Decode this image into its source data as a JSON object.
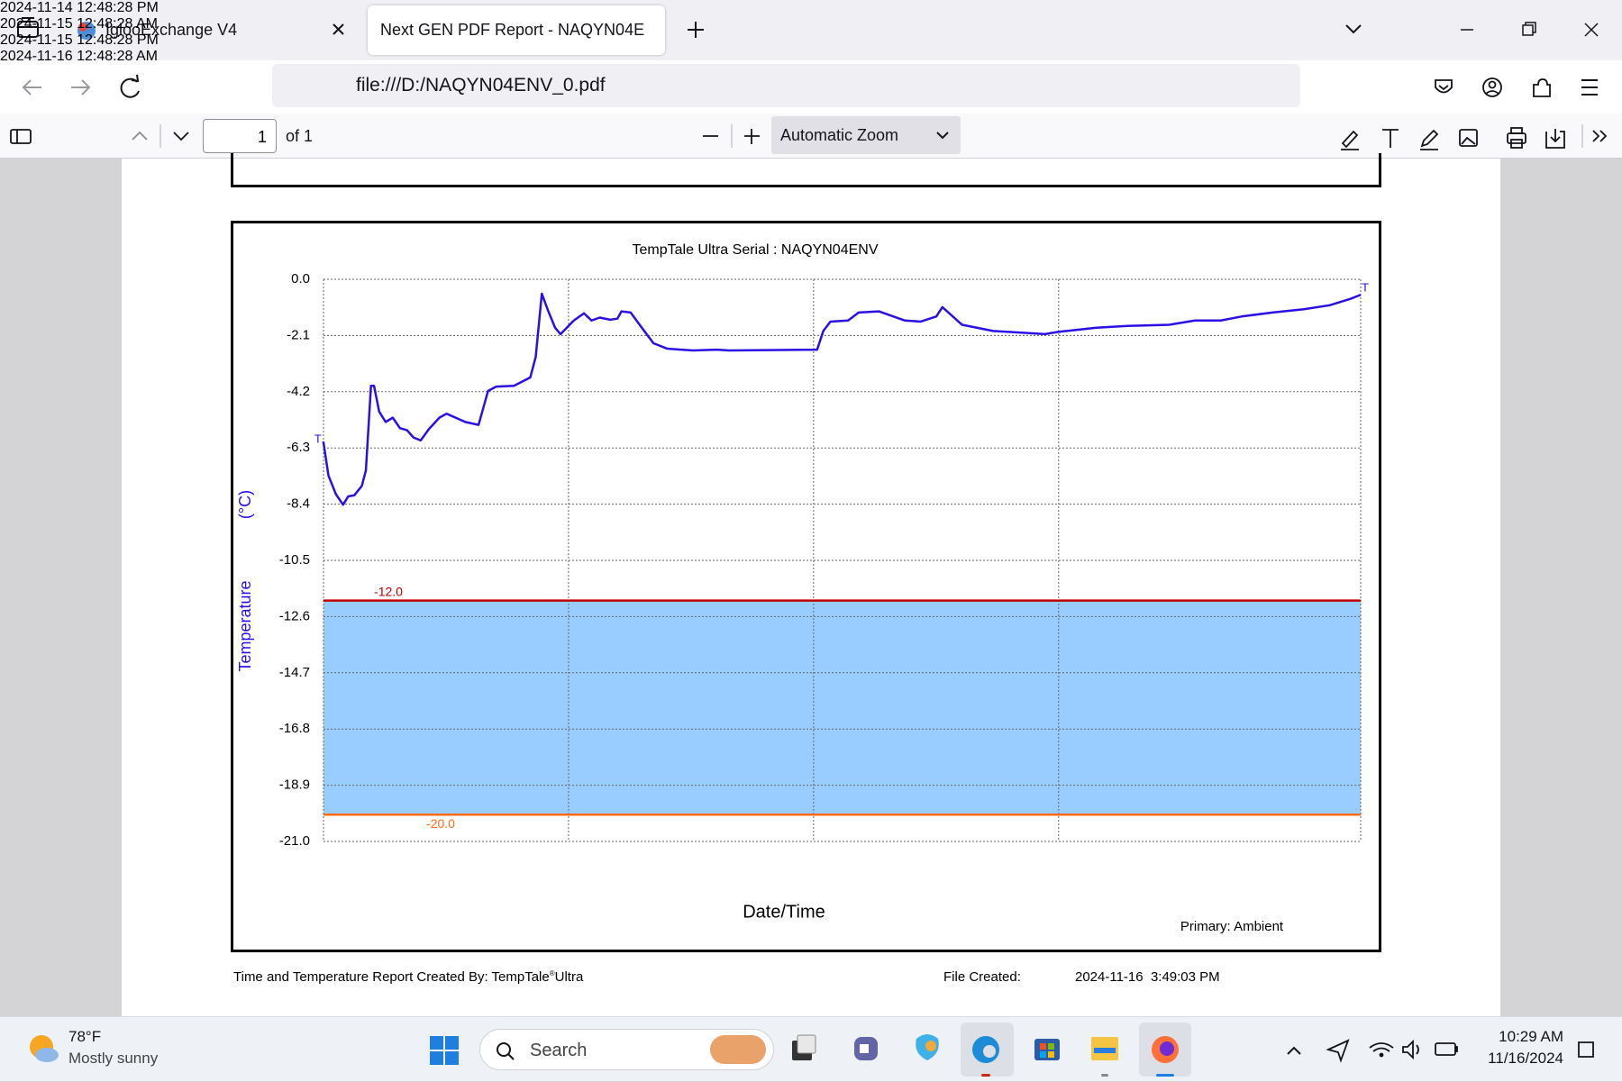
{
  "browser": {
    "tabs": [
      "IglooExchange V4",
      "Next GEN PDF Report - NAQYN04E"
    ],
    "url": "file:///D:/NAQYN04ENV_0.pdf",
    "pdf_toolbar": {
      "page": "1",
      "page_count": "of 1",
      "zoom": "Automatic Zoom"
    }
  },
  "chart_data": {
    "type": "line",
    "title": "TempTale Ultra  Serial : NAQYN04ENV",
    "x_label": "Date/Time",
    "y_label": "Temperature",
    "y_unit": "(°C)",
    "note": "Primary: Ambient",
    "x": [
      "2024-11-14T12:48",
      "2024-11-14T13:03",
      "2024-11-14T13:25",
      "2024-11-14T13:46",
      "2024-11-14T14:01",
      "2024-11-14T14:19",
      "2024-11-14T14:41",
      "2024-11-14T14:53",
      "2024-11-14T15:08",
      "2024-11-14T15:17",
      "2024-11-14T15:32",
      "2024-11-14T15:51",
      "2024-11-14T16:12",
      "2024-11-14T16:33",
      "2024-11-14T16:54",
      "2024-11-14T17:13",
      "2024-11-14T17:34",
      "2024-11-14T17:58",
      "2024-11-14T18:29",
      "2024-11-14T18:50",
      "2024-11-14T19:45",
      "2024-11-14T20:24",
      "2024-11-14T20:52",
      "2024-11-14T21:16",
      "2024-11-14T22:08",
      "2024-11-14T22:56",
      "2024-11-14T23:12",
      "2024-11-14T23:30",
      "2024-11-14T23:48",
      "2024-11-15T00:09",
      "2024-11-15T00:25",
      "2024-11-15T01:04",
      "2024-11-15T01:34",
      "2024-11-15T01:56",
      "2024-11-15T02:20",
      "2024-11-15T02:51",
      "2024-11-15T03:12",
      "2024-11-15T03:24",
      "2024-11-15T03:51",
      "2024-11-15T04:22",
      "2024-11-15T04:58",
      "2024-11-15T05:38",
      "2024-11-15T06:54",
      "2024-11-15T08:04",
      "2024-11-15T08:40",
      "2024-11-15T12:59",
      "2024-11-15T13:17",
      "2024-11-15T13:38",
      "2024-11-15T14:30",
      "2024-11-15T15:01",
      "2024-11-15T16:01",
      "2024-11-15T17:17",
      "2024-11-15T18:03",
      "2024-11-15T18:49",
      "2024-11-15T19:07",
      "2024-11-15T20:05",
      "2024-11-15T21:36",
      "2024-11-15T23:22",
      "2024-11-16T00:08",
      "2024-11-16T00:45",
      "2024-11-16T02:40",
      "2024-11-16T04:11",
      "2024-11-16T06:13",
      "2024-11-16T07:29",
      "2024-11-16T08:45",
      "2024-11-16T09:46",
      "2024-11-16T11:17",
      "2024-11-16T12:49",
      "2024-11-16T14:05",
      "2024-11-16T15:06",
      "2024-11-16T15:36"
    ],
    "values": [
      -6.06,
      -7.33,
      -8.03,
      -8.42,
      -8.11,
      -8.07,
      -7.72,
      -7.14,
      -3.98,
      -3.98,
      -4.94,
      -5.33,
      -5.17,
      -5.56,
      -5.64,
      -5.91,
      -6.02,
      -5.6,
      -5.17,
      -5.02,
      -5.33,
      -5.44,
      -4.17,
      -4.01,
      -3.98,
      -3.67,
      -2.9,
      -0.54,
      -1.16,
      -1.81,
      -2.05,
      -1.54,
      -1.27,
      -1.54,
      -1.43,
      -1.51,
      -1.47,
      -1.2,
      -1.24,
      -1.78,
      -2.39,
      -2.59,
      -2.66,
      -2.63,
      -2.66,
      -2.63,
      -1.93,
      -1.58,
      -1.54,
      -1.24,
      -1.2,
      -1.54,
      -1.58,
      -1.39,
      -1.04,
      -1.7,
      -1.93,
      -2.01,
      -2.05,
      -1.97,
      -1.81,
      -1.74,
      -1.7,
      -1.54,
      -1.54,
      -1.39,
      -1.24,
      -1.12,
      -0.97,
      -0.73,
      -0.58
    ],
    "color": "#2a10e6",
    "xlim": [
      "2024-11-14T12:48:28",
      "2024-11-16T15:36"
    ],
    "xticks": [
      {
        "value": "2024-11-14T12:48:28",
        "label": "2024-11-14\n12:48:28 PM"
      },
      {
        "value": "2024-11-15T00:48:28",
        "label": "2024-11-15\n12:48:28 AM"
      },
      {
        "value": "2024-11-15T12:48:28",
        "label": "2024-11-15\n12:48:28 PM"
      },
      {
        "value": "2024-11-16T00:48:28",
        "label": "2024-11-16\n12:48:28 AM"
      }
    ],
    "ylim": [
      -21,
      0
    ],
    "yticks": [
      {
        "value": 0,
        "label": "0.0"
      },
      -2.1,
      -4.2,
      -6.3,
      -8.4,
      -10.5,
      -12.6,
      -14.7,
      -16.8,
      -18.9,
      {
        "value": -21,
        "label": "-21.0"
      }
    ],
    "grid": true,
    "limits": [
      {
        "value": -12,
        "label": "-12.0",
        "color": "#c00000"
      },
      {
        "value": -20,
        "label": "-20.0",
        "color": "#ff6a13"
      }
    ],
    "band_color": "#99ccff",
    "start_marker": "T",
    "end_marker": "T"
  },
  "report_footer": {
    "created_by": "Time and Temperature Report Created By:  TempTale",
    "registered": "®",
    "product": "Ultra",
    "file_created_label": "File Created:",
    "file_created": "2024-11-16  3:49:03 PM"
  },
  "taskbar": {
    "temperature": "78°F",
    "weather": "Mostly sunny",
    "search": "Search",
    "time": "10:29 AM",
    "date": "11/16/2024"
  }
}
